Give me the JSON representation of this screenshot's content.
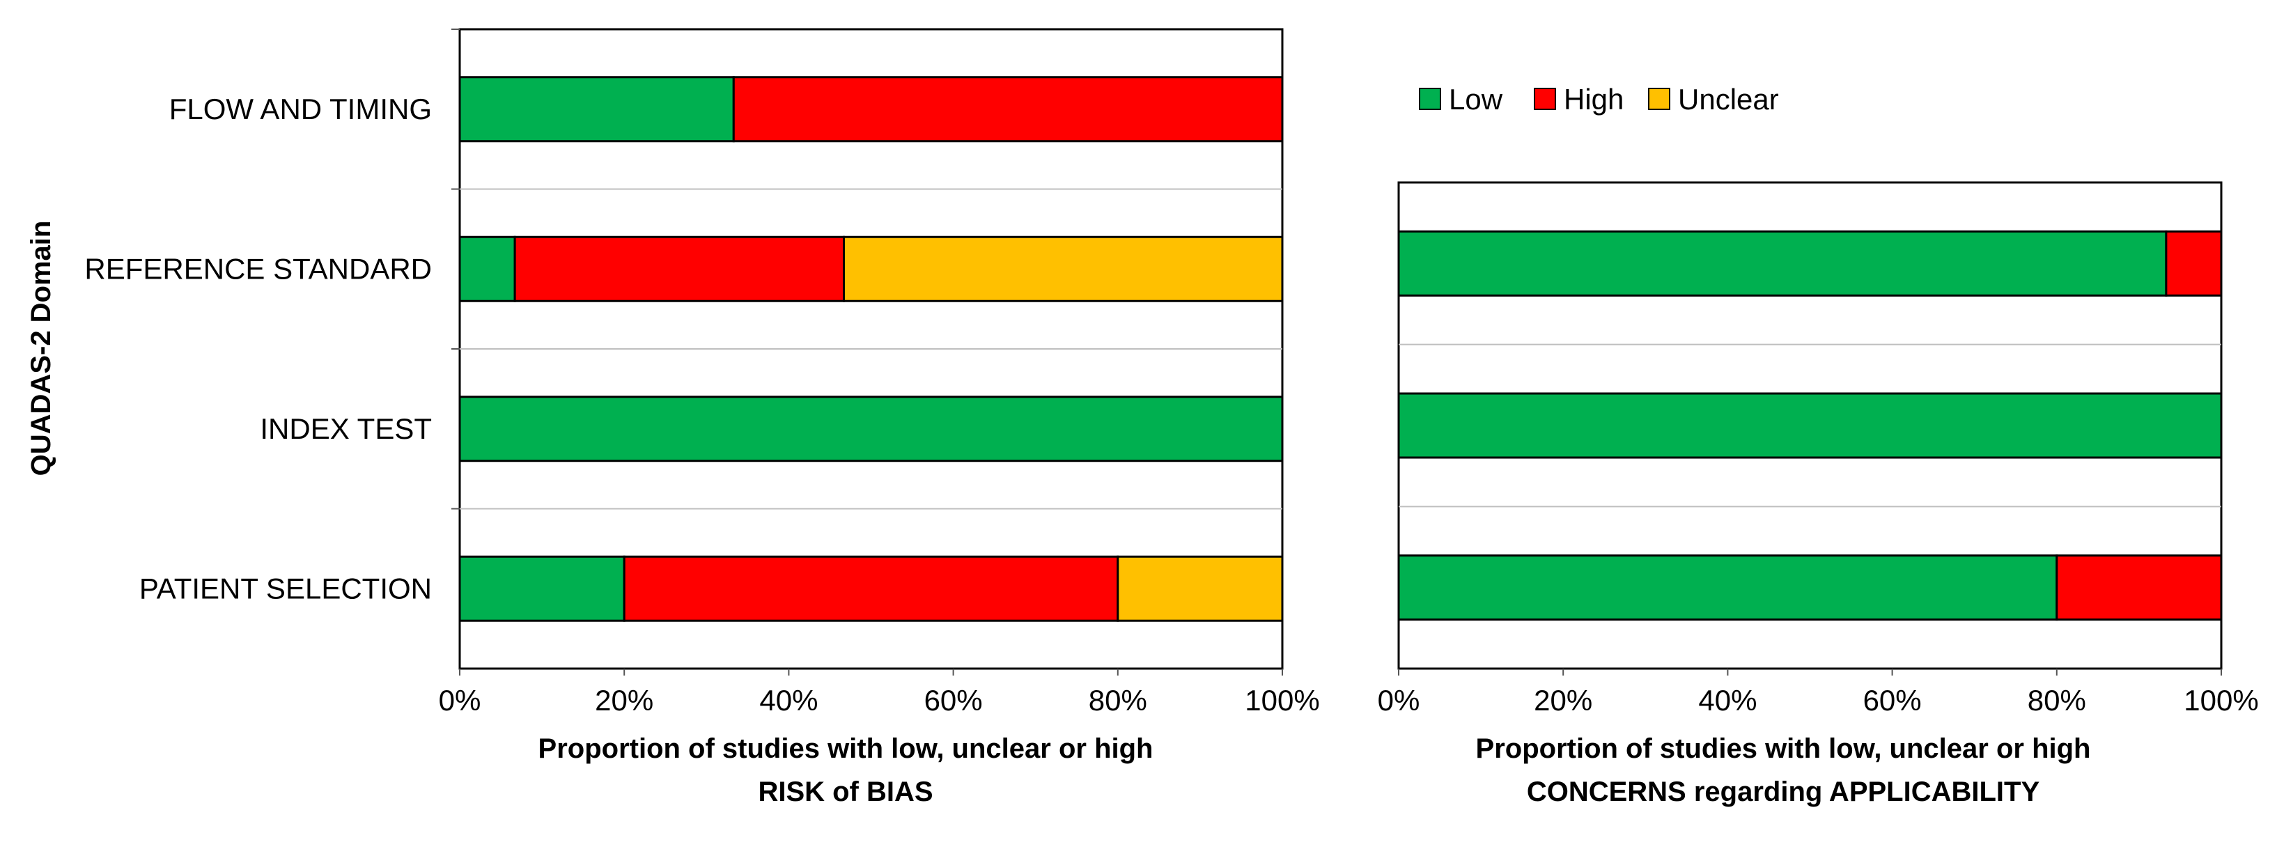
{
  "chart_data": [
    {
      "type": "bar",
      "stacked": true,
      "orientation": "horizontal",
      "title": "",
      "ylabel": "QUADAS-2 Domain",
      "xlabel_line1": "Proportion  of studies  with low, unclear or high",
      "xlabel_line2": "RISK of BIAS",
      "xlim": [
        0,
        100
      ],
      "xticks": [
        "0%",
        "20%",
        "40%",
        "60%",
        "80%",
        "100%"
      ],
      "categories": [
        "FLOW AND TIMING",
        "REFERENCE STANDARD",
        "INDEX TEST",
        "PATIENT SELECTION"
      ],
      "series": [
        {
          "name": "Low",
          "color": "#00b050",
          "values": [
            33.3,
            6.7,
            100,
            20
          ]
        },
        {
          "name": "High",
          "color": "#ff0000",
          "values": [
            66.7,
            40,
            0,
            60
          ]
        },
        {
          "name": "Unclear",
          "color": "#ffc000",
          "values": [
            0,
            53.3,
            0,
            20
          ]
        }
      ]
    },
    {
      "type": "bar",
      "stacked": true,
      "orientation": "horizontal",
      "title": "",
      "xlabel_line1": "Proportion  of studies  with low, unclear or  high",
      "xlabel_line2": "CONCERNS regarding APPLICABILITY",
      "xlim": [
        0,
        100
      ],
      "xticks": [
        "0%",
        "20%",
        "40%",
        "60%",
        "80%",
        "100%"
      ],
      "categories": [
        "REFERENCE STANDARD",
        "INDEX TEST",
        "PATIENT SELECTION"
      ],
      "series": [
        {
          "name": "Low",
          "color": "#00b050",
          "values": [
            93.3,
            100,
            80
          ]
        },
        {
          "name": "High",
          "color": "#ff0000",
          "values": [
            6.7,
            0,
            20
          ]
        },
        {
          "name": "Unclear",
          "color": "#ffc000",
          "values": [
            0,
            0,
            0
          ]
        }
      ]
    }
  ],
  "legend": [
    {
      "label": "Low",
      "color": "#00b050"
    },
    {
      "label": "High",
      "color": "#ff0000"
    },
    {
      "label": "Unclear",
      "color": "#ffc000"
    }
  ]
}
